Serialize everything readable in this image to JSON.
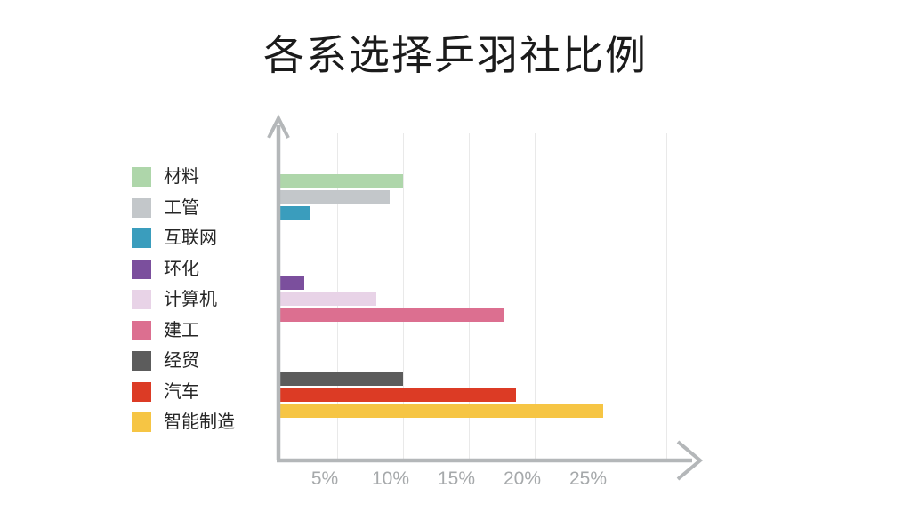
{
  "title": "各系选择乒羽社比例",
  "chart_data": {
    "type": "bar",
    "orientation": "horizontal",
    "title": "各系选择乒羽社比例",
    "categories": [
      "材料",
      "工管",
      "互联网",
      "环化",
      "计算机",
      "建工",
      "经贸",
      "汽车",
      "智能制造"
    ],
    "values": [
      10,
      9,
      3,
      2.5,
      8,
      17.7,
      10,
      18.6,
      25.2
    ],
    "unit": "percent",
    "colors": [
      "#aed6aa",
      "#c3c7ca",
      "#3a9dbd",
      "#7b4f9d",
      "#e8d3e7",
      "#dc6f90",
      "#5c5c5c",
      "#dc3b25",
      "#f6c544"
    ],
    "groups": [
      [
        0,
        1,
        2
      ],
      [
        3,
        4,
        5
      ],
      [
        6,
        7,
        8
      ]
    ],
    "x_tick_labels": [
      "5%",
      "10%",
      "15%",
      "20%",
      "25%"
    ],
    "x_tick_values": [
      5,
      10,
      15,
      20,
      25
    ],
    "grid_values": [
      5,
      10,
      15,
      20,
      25,
      30
    ],
    "xlim": [
      0,
      30
    ],
    "grid": "vertical-only",
    "legend_position": "left",
    "axis_color": "#b4b7b9",
    "gridline_color": "#e9e9e9",
    "tick_label_color": "#a6a9ab",
    "title_color": "#1b1b1b",
    "legend_text_color": "#262626"
  }
}
